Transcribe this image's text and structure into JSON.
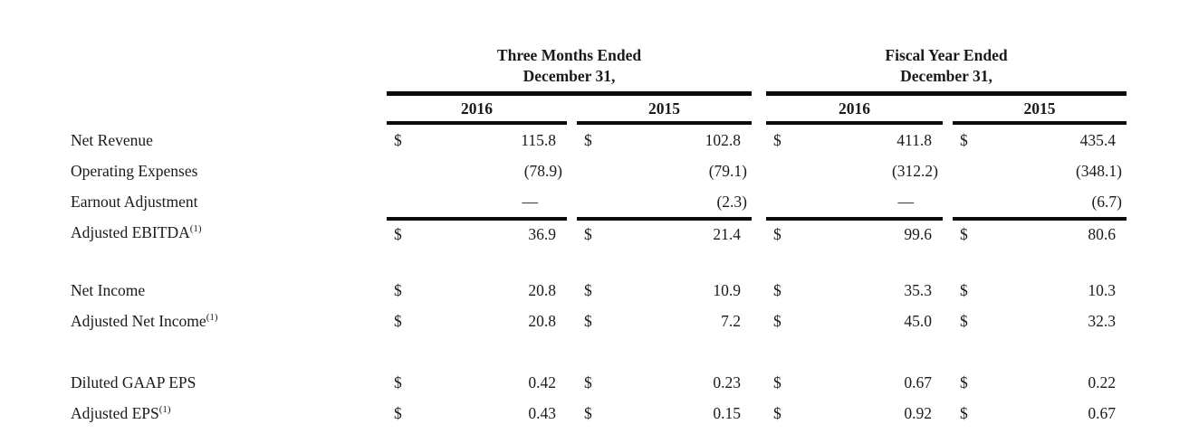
{
  "page": {
    "background_color": "#ffffff",
    "text_color": "#1a1a1a",
    "rule_color": "#0b0b0b"
  },
  "table": {
    "column_groups": [
      {
        "title_line1": "Three Months Ended",
        "title_line2": "December 31,",
        "years": [
          "2016",
          "2015"
        ]
      },
      {
        "title_line1": "Fiscal Year Ended",
        "title_line2": "December 31,",
        "years": [
          "2016",
          "2015"
        ]
      }
    ],
    "rows": [
      {
        "label": "Net Revenue",
        "sup": "",
        "currency": "$",
        "values": [
          "115.8",
          "102.8",
          "411.8",
          "435.4"
        ]
      },
      {
        "label": "Operating Expenses",
        "sup": "",
        "currency": "",
        "values": [
          "(78.9)",
          "(79.1)",
          "(312.2)",
          "(348.1)"
        ]
      },
      {
        "label": "Earnout Adjustment",
        "sup": "",
        "currency": "",
        "values": [
          "—",
          "(2.3)",
          "—",
          "(6.7)"
        ]
      },
      {
        "label": "Adjusted EBITDA",
        "sup": "(1)",
        "currency": "$",
        "values": [
          "36.9",
          "21.4",
          "99.6",
          "80.6"
        ]
      },
      {
        "label": "Net Income",
        "sup": "",
        "currency": "$",
        "values": [
          "20.8",
          "10.9",
          "35.3",
          "10.3"
        ]
      },
      {
        "label": "Adjusted Net Income",
        "sup": "(1)",
        "currency": "$",
        "values": [
          "20.8",
          "7.2",
          "45.0",
          "32.3"
        ]
      },
      {
        "label": "Diluted GAAP EPS",
        "sup": "",
        "currency": "$",
        "values": [
          "0.42",
          "0.23",
          "0.67",
          "0.22"
        ]
      },
      {
        "label": "Adjusted EPS",
        "sup": "(1)",
        "currency": "$",
        "values": [
          "0.43",
          "0.15",
          "0.92",
          "0.67"
        ]
      }
    ]
  }
}
